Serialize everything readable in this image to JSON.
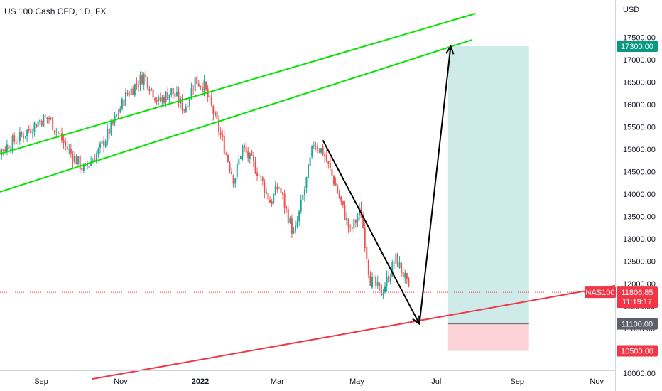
{
  "header": {
    "symbol_title": "US 100 Cash CFD, 1D, FX"
  },
  "chart_data": {
    "type": "candlestick",
    "currency": "USD",
    "ylim": [
      9870,
      17970
    ],
    "y_ticks": [
      10000,
      10500,
      11000,
      11500,
      12000,
      12500,
      13000,
      13500,
      14000,
      14500,
      15000,
      15500,
      16000,
      16500,
      17000,
      17500
    ],
    "y_tick_labels": [
      "10000.00",
      "10500.00",
      "11000.00",
      "11500.00",
      "12000.00",
      "12500.00",
      "13000.00",
      "13500.00",
      "14000.00",
      "14500.00",
      "15000.00",
      "15500.00",
      "16000.00",
      "16500.00",
      "17000.00",
      "17500.00"
    ],
    "x_tick_labels": [
      "Sep",
      "Nov",
      "2022",
      "Mar",
      "May",
      "Jul",
      "Sep",
      "Nov"
    ],
    "x_tick_dates": [
      "2021-09-01",
      "2021-11-01",
      "2022-01-01",
      "2022-03-01",
      "2022-05-01",
      "2022-07-01",
      "2022-09-01",
      "2022-11-01"
    ],
    "price_path": [
      [
        "2021-07-20",
        15000
      ],
      [
        "2021-08-01",
        14980
      ],
      [
        "2021-08-15",
        15250
      ],
      [
        "2021-08-31",
        15650
      ],
      [
        "2021-09-07",
        15700
      ],
      [
        "2021-09-20",
        15050
      ],
      [
        "2021-10-04",
        14530
      ],
      [
        "2021-10-15",
        14950
      ],
      [
        "2021-10-25",
        15500
      ],
      [
        "2021-11-05",
        16200
      ],
      [
        "2021-11-19",
        16650
      ],
      [
        "2021-11-30",
        16050
      ],
      [
        "2021-12-10",
        16300
      ],
      [
        "2021-12-20",
        15900
      ],
      [
        "2021-12-28",
        16550
      ],
      [
        "2022-01-04",
        16400
      ],
      [
        "2022-01-14",
        15550
      ],
      [
        "2022-01-27",
        14300
      ],
      [
        "2022-02-02",
        15050
      ],
      [
        "2022-02-14",
        14500
      ],
      [
        "2022-02-24",
        13800
      ],
      [
        "2022-03-02",
        14200
      ],
      [
        "2022-03-14",
        13050
      ],
      [
        "2022-03-23",
        14250
      ],
      [
        "2022-03-29",
        15150
      ],
      [
        "2022-04-05",
        14950
      ],
      [
        "2022-04-14",
        14250
      ],
      [
        "2022-04-26",
        13150
      ],
      [
        "2022-05-04",
        13650
      ],
      [
        "2022-05-11",
        12100
      ],
      [
        "2022-05-20",
        11800
      ],
      [
        "2022-05-31",
        12550
      ],
      [
        "2022-06-06",
        12200
      ],
      [
        "2022-06-10",
        11806.85
      ]
    ],
    "current_price": 11806.85,
    "instrument_tag": "NAS100",
    "countdown": "11:19:17",
    "position": {
      "start": "2022-07-10",
      "end": "2022-09-10",
      "entry": 11100,
      "target": 17300,
      "stop": 10500,
      "entry_label": "11100.00",
      "target_label": "17300.00",
      "stop_label": "10500.00",
      "current_label": "11806.85"
    },
    "channel_lines": [
      {
        "from": [
          "2021-07-20",
          14800
        ],
        "to": [
          "2022-07-31",
          18030
        ]
      },
      {
        "from": [
          "2021-07-20",
          13940
        ],
        "to": [
          "2022-07-28",
          17440
        ]
      }
    ],
    "support_line": {
      "from": [
        "2021-10-10",
        9870
      ],
      "to": [
        "2022-11-16",
        11960
      ]
    },
    "arrows": [
      {
        "from": [
          "2022-04-05",
          15200
        ],
        "to": [
          "2022-06-18",
          11100
        ]
      },
      {
        "from": [
          "2022-06-18",
          11100
        ],
        "to": [
          "2022-07-12",
          17300
        ]
      }
    ],
    "colors": {
      "up": "#26a69a",
      "down": "#ef5350",
      "channel": "#00e600",
      "support": "#f23645",
      "target_zone": "rgba(38,166,154,0.22)",
      "stop_zone": "rgba(242,54,69,0.22)",
      "entry_badge": "#5d606b",
      "target_badge": "#089981",
      "stop_badge": "#f23645"
    }
  }
}
